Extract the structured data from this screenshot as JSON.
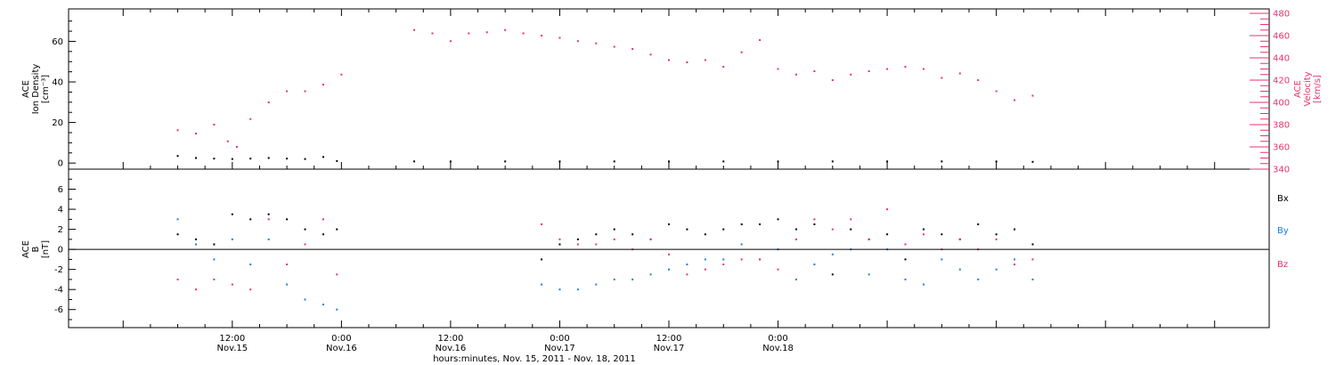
{
  "colors": {
    "density": "#000000",
    "velocity": "#e8336b",
    "bx": "#000000",
    "by": "#1a7fe0",
    "bz": "#e8336b"
  },
  "chart_data": [
    {
      "type": "scatter",
      "panel": "top",
      "ylabel": [
        "ACE",
        "Ion Density",
        "[cm⁻³]"
      ],
      "y2label": [
        "ACE",
        "Velocity",
        "[km/s]"
      ],
      "ylim": [
        -3,
        76
      ],
      "y2lim": [
        340,
        484
      ],
      "yticks": [
        "0",
        "20",
        "40",
        "60"
      ],
      "y2ticks": [
        "340",
        "360",
        "380",
        "400",
        "420",
        "440",
        "460",
        "480"
      ],
      "series": [
        {
          "axis": "left",
          "x": [
            6,
            8,
            10,
            12,
            14,
            16,
            18,
            20,
            22,
            23.5,
            32,
            36,
            42,
            48,
            54,
            60,
            66,
            72,
            78,
            84,
            90,
            96,
            100
          ],
          "y": [
            3.5,
            2.5,
            2.2,
            2.0,
            2.2,
            2.5,
            2.2,
            2.0,
            3.0,
            1.0,
            0.8,
            0.8,
            0.8,
            0.8,
            0.8,
            0.8,
            0.8,
            0.8,
            0.8,
            0.8,
            0.8,
            0.8,
            0.6
          ]
        },
        {
          "axis": "right",
          "x": [
            6,
            8,
            10,
            11.5,
            12.5,
            14,
            16,
            18,
            20,
            22,
            24,
            32,
            34,
            36,
            38,
            40,
            42,
            44,
            46,
            48,
            50,
            52,
            54,
            56,
            58,
            60,
            62,
            64,
            66,
            68,
            70,
            72,
            74,
            76,
            78,
            80,
            82,
            84,
            86,
            88,
            90,
            92,
            94,
            96,
            98,
            100
          ],
          "y": [
            375,
            372,
            380,
            365,
            360,
            385,
            400,
            410,
            410,
            416,
            425,
            465,
            462,
            455,
            462,
            463,
            465,
            462,
            460,
            458,
            455,
            453,
            450,
            448,
            443,
            438,
            436,
            438,
            432,
            445,
            456,
            430,
            425,
            428,
            420,
            425,
            428,
            430,
            432,
            430,
            422,
            426,
            420,
            410,
            402,
            406
          ]
        }
      ]
    },
    {
      "type": "scatter",
      "panel": "bottom",
      "ylabel": [
        "ACE",
        "B",
        "[nT]"
      ],
      "ylim": [
        -7.8,
        8
      ],
      "yticks": [
        "-6",
        "-4",
        "-2",
        "0",
        "2",
        "4",
        "6"
      ],
      "legend": [
        "Bx",
        "By",
        "Bz"
      ],
      "series": [
        {
          "name": "Bx",
          "x": [
            6,
            8,
            10,
            12,
            14,
            16,
            18,
            20,
            22,
            23.5,
            46,
            48,
            50,
            52,
            54,
            56,
            58,
            60,
            62,
            64,
            66,
            68,
            70,
            72,
            74,
            76,
            78,
            80,
            82,
            84,
            86,
            88,
            90,
            92,
            94,
            96,
            98,
            100
          ],
          "y": [
            1.5,
            1.0,
            0.5,
            3.5,
            3.0,
            3.5,
            3.0,
            2.0,
            1.5,
            2.0,
            -1.0,
            0.5,
            1.0,
            1.5,
            2.0,
            1.5,
            1.0,
            2.5,
            2.0,
            1.5,
            2.0,
            2.5,
            2.5,
            3.0,
            2.0,
            2.5,
            -2.5,
            2.0,
            1.0,
            1.5,
            -1.0,
            2.0,
            1.5,
            1.0,
            2.5,
            1.5,
            2.0,
            0.5
          ]
        },
        {
          "name": "By",
          "x": [
            6,
            8,
            10,
            12,
            14,
            16,
            18,
            20,
            22,
            23.5,
            46,
            48,
            50,
            52,
            54,
            56,
            58,
            60,
            62,
            64,
            66,
            68,
            70,
            72,
            74,
            76,
            78,
            80,
            82,
            84,
            86,
            88,
            90,
            92,
            94,
            96,
            98,
            100
          ],
          "y": [
            3.0,
            0.5,
            -1.0,
            1.0,
            -1.5,
            1.0,
            -3.5,
            -5.0,
            -5.5,
            -6.0,
            -3.5,
            -4.0,
            -4.0,
            -3.5,
            -3.0,
            -3.0,
            -2.5,
            -2.0,
            -1.5,
            -1.0,
            -1.0,
            0.5,
            -1.0,
            0.0,
            -3.0,
            -1.5,
            -0.5,
            0.0,
            -2.5,
            0.0,
            -3.0,
            -3.5,
            -1.0,
            -2.0,
            -3.0,
            -2.0,
            -1.0,
            -3.0
          ]
        },
        {
          "name": "Bz",
          "x": [
            6,
            8,
            10,
            12,
            14,
            16,
            18,
            20,
            22,
            23.5,
            46,
            48,
            50,
            52,
            54,
            56,
            58,
            60,
            62,
            64,
            66,
            68,
            70,
            72,
            74,
            76,
            78,
            80,
            82,
            84,
            86,
            88,
            90,
            92,
            94,
            96,
            98,
            100
          ],
          "y": [
            -3.0,
            -4.0,
            -3.0,
            -3.5,
            -4.0,
            3.0,
            -1.5,
            0.5,
            3.0,
            -2.5,
            2.5,
            1.0,
            0.5,
            0.5,
            1.0,
            0.0,
            1.0,
            -0.5,
            -2.5,
            -2.0,
            -1.5,
            -1.0,
            -1.0,
            -2.0,
            1.0,
            3.0,
            2.0,
            3.0,
            1.0,
            4.0,
            0.5,
            1.5,
            0.0,
            1.0,
            0.0,
            1.0,
            -1.5,
            -1.0
          ]
        }
      ]
    }
  ],
  "xaxis": {
    "xlim": [
      -6,
      126
    ],
    "xlabel": "hours:minutes, Nov. 15, 2011 - Nov. 18, 2011",
    "major_ticks": [
      {
        "x": 12,
        "time": "12:00",
        "date": "Nov.15"
      },
      {
        "x": 24,
        "time": "0:00",
        "date": "Nov.16"
      },
      {
        "x": 36,
        "time": "12:00",
        "date": "Nov.16"
      },
      {
        "x": 48,
        "time": "0:00",
        "date": "Nov.17"
      },
      {
        "x": 60,
        "time": "12:00",
        "date": "Nov.17"
      },
      {
        "x": 72,
        "time": "0:00",
        "date": "Nov.18"
      }
    ]
  },
  "legend_labels": {
    "bx": "Bx",
    "by": "By",
    "bz": "Bz"
  }
}
